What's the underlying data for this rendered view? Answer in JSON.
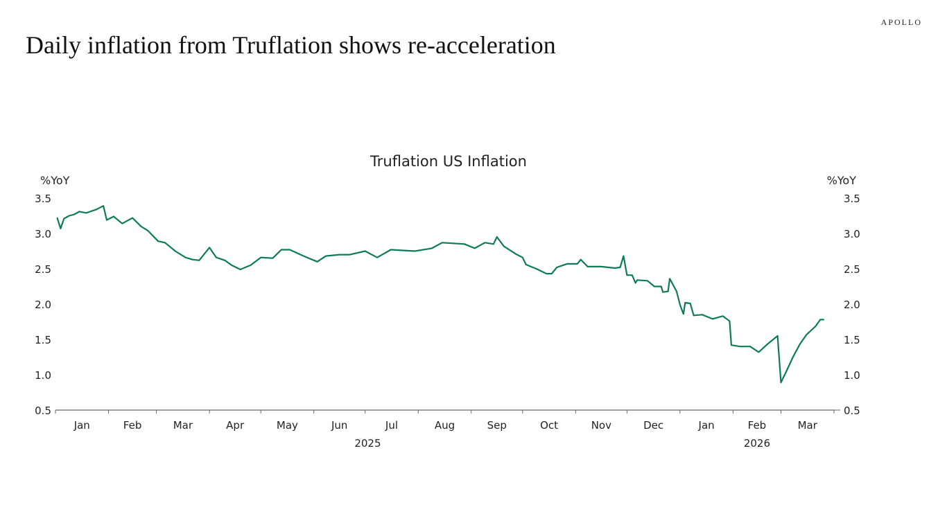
{
  "header": {
    "title": "Daily inflation from Truflation shows re-acceleration",
    "logo": "APOLLO"
  },
  "colors": {
    "line": "#0e7a5c",
    "axis": "#666666"
  },
  "chart_data": {
    "type": "line",
    "title": "Truflation US Inflation",
    "ylabel_left": "%YoY",
    "ylabel_right": "%YoY",
    "ylim": [
      0.5,
      3.5
    ],
    "yticks": [
      "0.5",
      "1.0",
      "1.5",
      "2.0",
      "2.5",
      "3.0",
      "3.5"
    ],
    "xlim": [
      "2025-01-01",
      "2026-04-01"
    ],
    "month_labels": [
      "Jan",
      "Feb",
      "Mar",
      "Apr",
      "May",
      "Jun",
      "Jul",
      "Aug",
      "Sep",
      "Oct",
      "Nov",
      "Dec",
      "Jan",
      "Feb",
      "Mar"
    ],
    "year_labels": [
      "2025",
      "2026"
    ],
    "grid": false,
    "series": [
      {
        "x": [
          "2025-01-02",
          "2025-01-04",
          "2025-01-06",
          "2025-01-09",
          "2025-01-12",
          "2025-01-15",
          "2025-01-19",
          "2025-01-25",
          "2025-01-29",
          "2025-01-31",
          "2025-02-04",
          "2025-02-09",
          "2025-02-15",
          "2025-02-20",
          "2025-02-24",
          "2025-03-02",
          "2025-03-06",
          "2025-03-12",
          "2025-03-18",
          "2025-03-22",
          "2025-03-26",
          "2025-04-01",
          "2025-04-05",
          "2025-04-10",
          "2025-04-14",
          "2025-04-19",
          "2025-04-25",
          "2025-05-01",
          "2025-05-08",
          "2025-05-13",
          "2025-05-18",
          "2025-05-26",
          "2025-06-03",
          "2025-06-08",
          "2025-06-16",
          "2025-06-22",
          "2025-07-01",
          "2025-07-08",
          "2025-07-16",
          "2025-07-30",
          "2025-08-09",
          "2025-08-15",
          "2025-08-28",
          "2025-09-03",
          "2025-09-09",
          "2025-09-14",
          "2025-09-16",
          "2025-09-20",
          "2025-09-27",
          "2025-10-01",
          "2025-10-03",
          "2025-10-09",
          "2025-10-15",
          "2025-10-18",
          "2025-10-21",
          "2025-10-27",
          "2025-11-02",
          "2025-11-04",
          "2025-11-08",
          "2025-11-16",
          "2025-11-24",
          "2025-11-27",
          "2025-11-29",
          "2025-12-01",
          "2025-12-04",
          "2025-12-06",
          "2025-12-07",
          "2025-12-13",
          "2025-12-17",
          "2025-12-21",
          "2025-12-22",
          "2025-12-25",
          "2025-12-26",
          "2025-12-30",
          "2026-01-01",
          "2026-01-03",
          "2026-01-04",
          "2026-01-07",
          "2026-01-09",
          "2026-01-14",
          "2026-01-20",
          "2026-01-26",
          "2026-01-30",
          "2026-01-31",
          "2026-02-05",
          "2026-02-11",
          "2026-02-16",
          "2026-02-21",
          "2026-02-27",
          "2026-03-01",
          "2026-03-04",
          "2026-03-08",
          "2026-03-12",
          "2026-03-16",
          "2026-03-21",
          "2026-03-24",
          "2026-03-26"
        ],
        "values": [
          3.22,
          3.07,
          3.21,
          3.25,
          3.27,
          3.31,
          3.29,
          3.34,
          3.39,
          3.19,
          3.24,
          3.14,
          3.22,
          3.1,
          3.04,
          2.89,
          2.87,
          2.75,
          2.66,
          2.63,
          2.62,
          2.8,
          2.66,
          2.62,
          2.55,
          2.49,
          2.55,
          2.66,
          2.65,
          2.77,
          2.77,
          2.68,
          2.6,
          2.68,
          2.7,
          2.7,
          2.75,
          2.66,
          2.77,
          2.75,
          2.79,
          2.87,
          2.85,
          2.79,
          2.87,
          2.85,
          2.95,
          2.82,
          2.71,
          2.66,
          2.56,
          2.5,
          2.43,
          2.43,
          2.52,
          2.57,
          2.57,
          2.63,
          2.53,
          2.53,
          2.51,
          2.52,
          2.68,
          2.41,
          2.41,
          2.3,
          2.34,
          2.33,
          2.25,
          2.25,
          2.17,
          2.18,
          2.36,
          2.18,
          1.99,
          1.86,
          2.02,
          2.01,
          1.84,
          1.85,
          1.79,
          1.83,
          1.76,
          1.42,
          1.4,
          1.4,
          1.32,
          1.43,
          1.55,
          0.89,
          1.04,
          1.25,
          1.43,
          1.57,
          1.68,
          1.78,
          1.78
        ]
      }
    ]
  }
}
